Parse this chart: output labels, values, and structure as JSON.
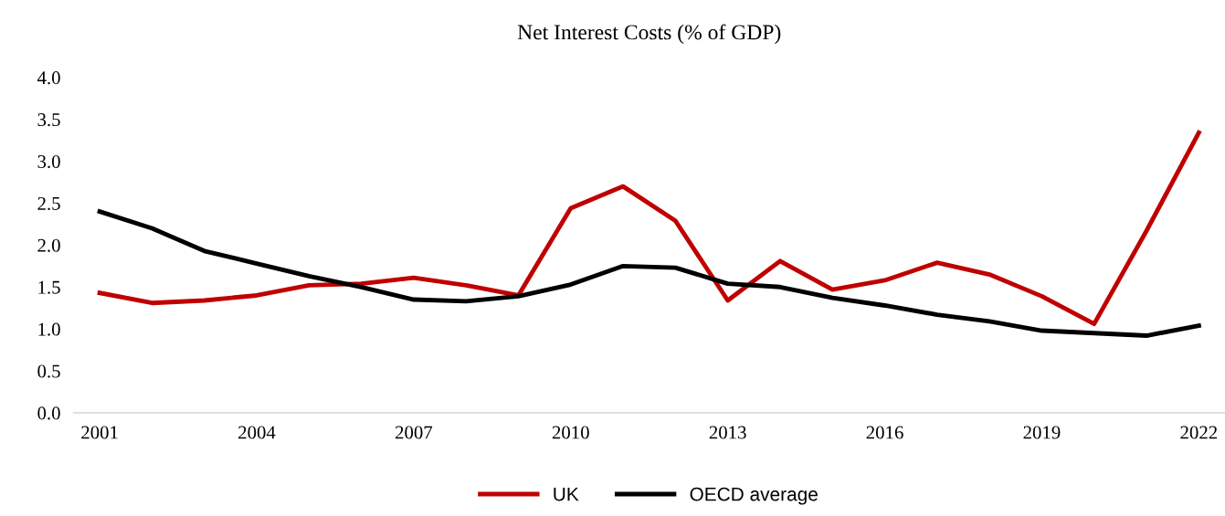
{
  "chart_data": {
    "type": "line",
    "title": "Net Interest Costs (% of GDP)",
    "x": [
      2001,
      2002,
      2003,
      2004,
      2005,
      2006,
      2007,
      2008,
      2009,
      2010,
      2011,
      2012,
      2013,
      2014,
      2015,
      2016,
      2017,
      2018,
      2019,
      2020,
      2021,
      2022
    ],
    "series": [
      {
        "name": "UK",
        "color": "#c00000",
        "values": [
          1.43,
          1.31,
          1.34,
          1.4,
          1.52,
          1.54,
          1.61,
          1.52,
          1.4,
          2.44,
          2.7,
          2.29,
          1.34,
          1.81,
          1.47,
          1.58,
          1.79,
          1.65,
          1.39,
          1.06,
          2.17,
          3.34
        ]
      },
      {
        "name": "OECD average",
        "color": "#000000",
        "values": [
          2.4,
          2.2,
          1.93,
          1.78,
          1.63,
          1.5,
          1.35,
          1.33,
          1.39,
          1.53,
          1.75,
          1.73,
          1.54,
          1.5,
          1.37,
          1.28,
          1.17,
          1.09,
          0.98,
          0.95,
          0.92,
          1.04
        ]
      }
    ],
    "xlim": [
      2000.5,
      2022.5
    ],
    "xticks": [
      2001,
      2004,
      2007,
      2010,
      2013,
      2016,
      2019,
      2022
    ],
    "ylim": [
      0,
      4
    ],
    "yticks": [
      {
        "value": 0,
        "label": "0.0"
      },
      {
        "value": 0.5,
        "label": "0.5"
      },
      {
        "value": 1,
        "label": "1.0"
      },
      {
        "value": 1.5,
        "label": "1.5"
      },
      {
        "value": 2,
        "label": "2.0"
      },
      {
        "value": 2.5,
        "label": "2.5"
      },
      {
        "value": 3,
        "label": "3.0"
      },
      {
        "value": 3.5,
        "label": "3.5"
      },
      {
        "value": 4,
        "label": "4.0"
      }
    ],
    "grid": false,
    "legend": "bottom",
    "marker": "none",
    "line_style": "solid"
  }
}
